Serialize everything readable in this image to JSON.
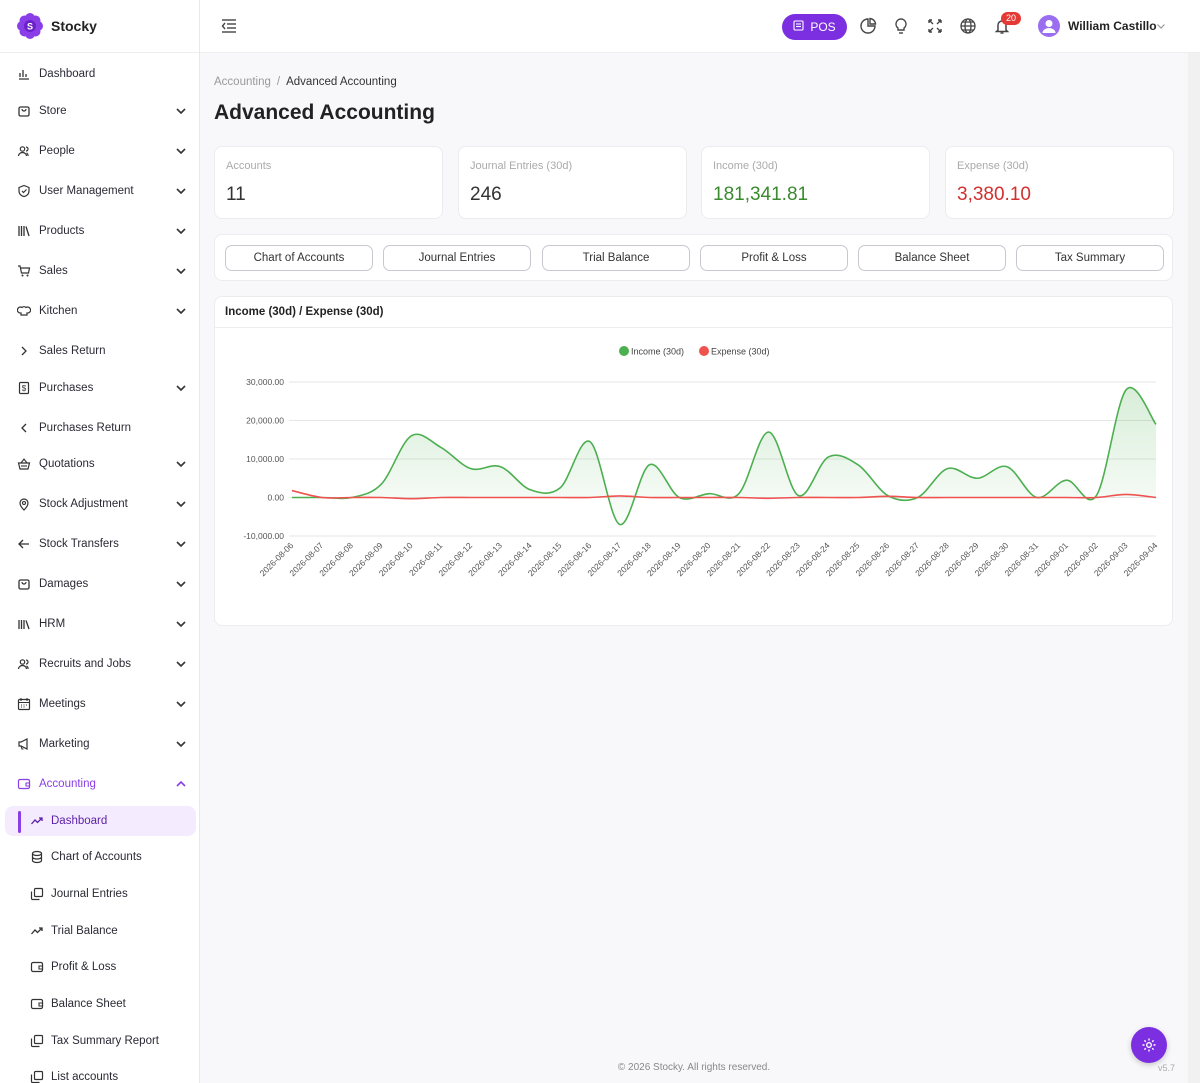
{
  "brand": {
    "name": "Stocky",
    "logo_letter": "S"
  },
  "sidebar": {
    "items": [
      {
        "label": "Dashboard",
        "icon": "bar-chart-icon",
        "chevron": ""
      },
      {
        "label": "Store",
        "icon": "store-icon",
        "chevron": "down"
      },
      {
        "label": "People",
        "icon": "people-icon",
        "chevron": "down"
      },
      {
        "label": "User Management",
        "icon": "shield-icon",
        "chevron": "down"
      },
      {
        "label": "Products",
        "icon": "books-icon",
        "chevron": "down"
      },
      {
        "label": "Sales",
        "icon": "cart-icon",
        "chevron": "down"
      },
      {
        "label": "Kitchen",
        "icon": "chef-hat-icon",
        "chevron": "down"
      },
      {
        "label": "Sales Return",
        "icon": "chevron-right-icon",
        "chevron": ""
      },
      {
        "label": "Purchases",
        "icon": "receipt-icon",
        "chevron": "down"
      },
      {
        "label": "Purchases Return",
        "icon": "chevron-left-icon",
        "chevron": ""
      },
      {
        "label": "Quotations",
        "icon": "basket-icon",
        "chevron": "down"
      },
      {
        "label": "Stock Adjustment",
        "icon": "pin-icon",
        "chevron": "down"
      },
      {
        "label": "Stock Transfers",
        "icon": "arrow-left-icon",
        "chevron": "down"
      },
      {
        "label": "Damages",
        "icon": "bag-icon",
        "chevron": "down"
      },
      {
        "label": "HRM",
        "icon": "library-icon",
        "chevron": "down"
      },
      {
        "label": "Recruits and Jobs",
        "icon": "people-icon",
        "chevron": "down"
      },
      {
        "label": "Meetings",
        "icon": "calendar-icon",
        "chevron": "down"
      },
      {
        "label": "Marketing",
        "icon": "megaphone-icon",
        "chevron": "down"
      },
      {
        "label": "Accounting",
        "icon": "wallet-icon",
        "chevron": "up"
      }
    ],
    "sub_items": [
      {
        "label": "Dashboard",
        "icon": "trend-icon"
      },
      {
        "label": "Chart of Accounts",
        "icon": "database-icon"
      },
      {
        "label": "Journal Entries",
        "icon": "copy-icon"
      },
      {
        "label": "Trial Balance",
        "icon": "trend-icon"
      },
      {
        "label": "Profit & Loss",
        "icon": "wallet-icon"
      },
      {
        "label": "Balance Sheet",
        "icon": "wallet-icon"
      },
      {
        "label": "Tax Summary Report",
        "icon": "copy-icon"
      },
      {
        "label": "List accounts",
        "icon": "copy-icon"
      }
    ]
  },
  "topbar": {
    "pos_label": "POS",
    "notification_count": "20",
    "user_name": "William Castillo"
  },
  "breadcrumb": {
    "parent": "Accounting",
    "separator": "/",
    "current": "Advanced Accounting"
  },
  "page_title": "Advanced Accounting",
  "stats": [
    {
      "label": "Accounts",
      "value": "11",
      "color": "#333333"
    },
    {
      "label": "Journal Entries (30d)",
      "value": "246",
      "color": "#333333"
    },
    {
      "label": "Income (30d)",
      "value": "181,341.81",
      "color": "#3a8a2e"
    },
    {
      "label": "Expense (30d)",
      "value": "3,380.10",
      "color": "#d32f2f"
    }
  ],
  "tabs": [
    "Chart of Accounts",
    "Journal Entries",
    "Trial Balance",
    "Profit & Loss",
    "Balance Sheet",
    "Tax Summary"
  ],
  "chart_card_title": "Income (30d) / Expense (30d)",
  "chart_data": {
    "type": "line",
    "title": "",
    "x": [
      "2026-08-06",
      "2026-08-07",
      "2026-08-08",
      "2026-08-09",
      "2026-08-10",
      "2026-08-11",
      "2026-08-12",
      "2026-08-13",
      "2026-08-14",
      "2026-08-15",
      "2026-08-16",
      "2026-08-17",
      "2026-08-18",
      "2026-08-19",
      "2026-08-20",
      "2026-08-21",
      "2026-08-22",
      "2026-08-23",
      "2026-08-24",
      "2026-08-25",
      "2026-08-26",
      "2026-08-27",
      "2026-08-28",
      "2026-08-29",
      "2026-08-30",
      "2026-08-31",
      "2026-09-01",
      "2026-09-02",
      "2026-09-03",
      "2026-09-04"
    ],
    "series": [
      {
        "name": "Income (30d)",
        "color": "#4caf50",
        "area": true,
        "values": [
          0,
          0,
          0,
          3500,
          16000,
          13000,
          7500,
          8000,
          2000,
          2500,
          14500,
          -7000,
          8500,
          0,
          1000,
          1000,
          17000,
          500,
          10500,
          8500,
          500,
          0,
          7500,
          5000,
          8000,
          0,
          4500,
          500,
          28000,
          19000
        ]
      },
      {
        "name": "Expense (30d)",
        "color": "#ef5350",
        "area": false,
        "values": [
          1800,
          0,
          0,
          0,
          -300,
          0,
          0,
          0,
          0,
          0,
          0,
          400,
          0,
          0,
          0,
          0,
          -200,
          0,
          0,
          0,
          300,
          0,
          0,
          0,
          0,
          0,
          0,
          0,
          800,
          0
        ]
      }
    ],
    "y_ticks": [
      "-10,000.00",
      "0.00",
      "10,000.00",
      "20,000.00",
      "30,000.00"
    ],
    "ylim": [
      -10000,
      30000
    ],
    "legend": "top-center",
    "grid": true
  },
  "footer": "© 2026 Stocky. All rights reserved.",
  "version": "v5.7"
}
